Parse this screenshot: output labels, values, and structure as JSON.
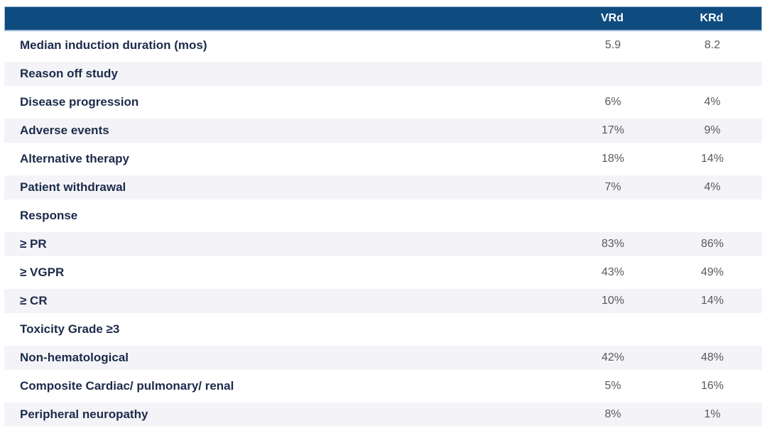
{
  "colors": {
    "header-bg": "#0e4b7e",
    "header-text": "#ffffff",
    "header-border": "#9db9d6",
    "row-bg": "#ffffff",
    "row-alt-bg": "#f4f4f8",
    "label-text": "#1c2b4a",
    "value-text": "#595959"
  },
  "chart_data": {
    "type": "table",
    "columns": [
      "VRd",
      "KRd"
    ],
    "rows": [
      {
        "label": "Median induction duration (mos)",
        "vrd": "5.9",
        "krd": "8.2",
        "section": false
      },
      {
        "label": "Reason off study",
        "vrd": "",
        "krd": "",
        "section": true
      },
      {
        "label": "Disease progression",
        "vrd": "6%",
        "krd": "4%",
        "section": false
      },
      {
        "label": "Adverse events",
        "vrd": "17%",
        "krd": "9%",
        "section": false
      },
      {
        "label": "Alternative therapy",
        "vrd": "18%",
        "krd": "14%",
        "section": false
      },
      {
        "label": "Patient withdrawal",
        "vrd": "7%",
        "krd": "4%",
        "section": false
      },
      {
        "label": "Response",
        "vrd": "",
        "krd": "",
        "section": true
      },
      {
        "label": "≥ PR",
        "vrd": "83%",
        "krd": "86%",
        "section": false
      },
      {
        "label": "≥ VGPR",
        "vrd": "43%",
        "krd": "49%",
        "section": false
      },
      {
        "label": "≥ CR",
        "vrd": "10%",
        "krd": "14%",
        "section": false
      },
      {
        "label": "Toxicity Grade ≥3",
        "vrd": "",
        "krd": "",
        "section": true
      },
      {
        "label": "Non-hematological",
        "vrd": "42%",
        "krd": "48%",
        "section": false
      },
      {
        "label": "Composite Cardiac/ pulmonary/ renal",
        "vrd": "5%",
        "krd": "16%",
        "section": false
      },
      {
        "label": "Peripheral neuropathy",
        "vrd": "8%",
        "krd": "1%",
        "section": false
      }
    ]
  }
}
